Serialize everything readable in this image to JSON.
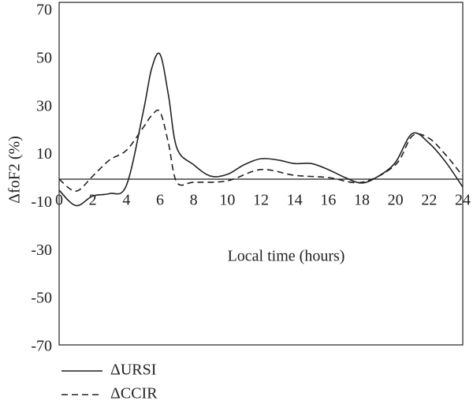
{
  "chart_data": {
    "type": "line",
    "x_label": "Local time (hours)",
    "y_label": "ΔfoF2 (%)",
    "xlim": [
      0,
      24
    ],
    "xticks": [
      0,
      2,
      4,
      6,
      8,
      10,
      12,
      14,
      16,
      18,
      20,
      22,
      24
    ],
    "ylim": [
      -70,
      70
    ],
    "yticks": [
      -70,
      -50,
      -30,
      -10,
      10,
      30,
      50,
      70
    ],
    "reference_line": 0,
    "series": [
      {
        "name": "ΔURSI",
        "color": "#222222",
        "dash": "none",
        "x": [
          0,
          1,
          2,
          3,
          4,
          5,
          5.5,
          6,
          6.5,
          7,
          8,
          9,
          10,
          11,
          12,
          13,
          14,
          15,
          16,
          17,
          18,
          19,
          20,
          21,
          22,
          23,
          24
        ],
        "values": [
          -4.6,
          -11,
          -7,
          -6,
          -2.6,
          28,
          46,
          52,
          35,
          13,
          6,
          1.3,
          2,
          6,
          8.5,
          8,
          6.5,
          6.5,
          4,
          0.7,
          -1.6,
          1.3,
          7,
          19,
          15,
          7,
          -3.3
        ]
      },
      {
        "name": "ΔCCIR",
        "color": "#222222",
        "dash": "8 5",
        "x": [
          0,
          1,
          2,
          3,
          4,
          5,
          5.5,
          6,
          6.5,
          7,
          8,
          10,
          12,
          14,
          16,
          18,
          20,
          21,
          22,
          23,
          24
        ],
        "values": [
          0,
          -5,
          1.3,
          8,
          12,
          21.5,
          26.5,
          28,
          15,
          -1.3,
          -1.3,
          -0.7,
          4,
          1.6,
          0.7,
          -1.3,
          6,
          18,
          17,
          10,
          1.3
        ]
      }
    ]
  }
}
